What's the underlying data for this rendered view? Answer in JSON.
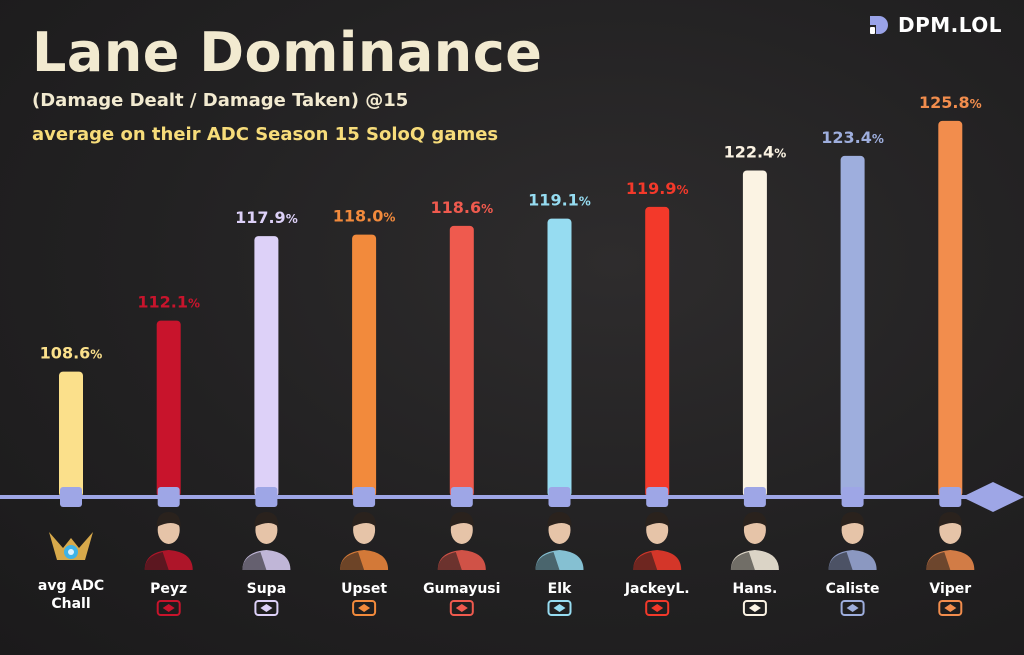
{
  "header": {
    "title": "Lane Dominance",
    "subtitle": "(Damage Dealt / Damage Taken) @15",
    "subtitle2": "average on their ADC Season 15 SoloQ games",
    "brand": "DPM.LOL"
  },
  "chart_data": {
    "type": "bar",
    "title": "Lane Dominance",
    "subtitle": "(Damage Dealt / Damage Taken) @15 average on their ADC Season 15 SoloQ games",
    "unit": "%",
    "categories": [
      "avg ADC Chall",
      "Peyz",
      "Supa",
      "Upset",
      "Gumayusi",
      "Elk",
      "JackeyL.",
      "Hans.",
      "Caliste",
      "Viper"
    ],
    "values": [
      108.6,
      112.1,
      117.9,
      118.0,
      118.6,
      119.1,
      119.9,
      122.4,
      123.4,
      125.8
    ],
    "value_labels": [
      "108.6",
      "112.1",
      "117.9",
      "118.0",
      "118.6",
      "119.1",
      "119.9",
      "122.4",
      "123.4",
      "125.8"
    ],
    "colors": [
      "#fbe08b",
      "#c8142c",
      "#ddd1f8",
      "#f28a3c",
      "#ef5a4e",
      "#96dcf1",
      "#f3392a",
      "#fbf3e3",
      "#9eaedd",
      "#f28d4d"
    ],
    "team_icons": [
      "challenger-emblem-icon",
      "jdg-logo-icon",
      "vitality-logo-icon",
      "fnatic-logo-icon",
      "t1-logo-icon",
      "blg-logo-icon",
      "topesports-logo-icon",
      "g2-logo-icon",
      "karmine-corp-logo-icon",
      "hle-logo-icon"
    ],
    "ylim": [
      100,
      126
    ],
    "axis_color": "#9ea6e6",
    "grid": false,
    "legend": "none"
  }
}
